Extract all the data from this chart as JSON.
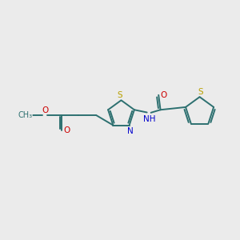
{
  "bg_color": "#ebebeb",
  "bond_color": "#2d7070",
  "bond_width": 1.4,
  "S_color": "#b8a000",
  "N_color": "#0000cc",
  "O_color": "#cc0000",
  "figsize": [
    3.0,
    3.0
  ],
  "dpi": 100,
  "xlim": [
    0,
    10
  ],
  "ylim": [
    2,
    8
  ]
}
